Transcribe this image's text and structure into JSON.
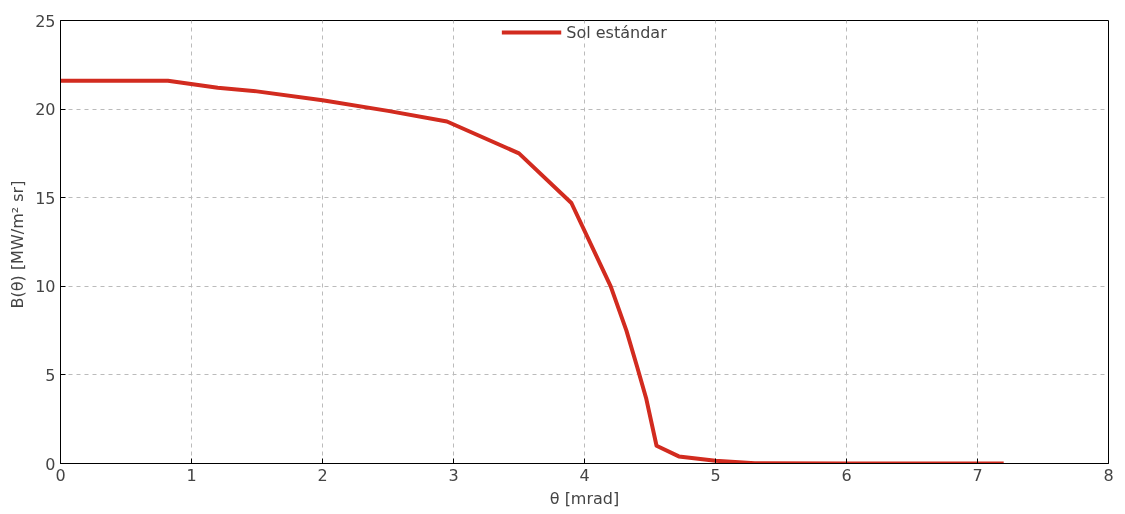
{
  "chart_data": {
    "type": "line",
    "xlabel": "θ [mrad]",
    "ylabel": "B(θ)  [MW/m² sr]",
    "xlim": [
      0,
      8
    ],
    "ylim": [
      0,
      25
    ],
    "xticks": [
      0,
      1,
      2,
      3,
      4,
      5,
      6,
      7,
      8
    ],
    "yticks": [
      0,
      5,
      10,
      15,
      20,
      25
    ],
    "grid": true,
    "legend": "top",
    "marker": "none",
    "line_style": "solid",
    "series": [
      {
        "name": "Sol estándar",
        "color": "#d22b1f",
        "x": [
          0,
          0.82,
          1.2,
          1.5,
          2.0,
          2.5,
          2.95,
          3.5,
          3.9,
          4.2,
          4.32,
          4.4,
          4.47,
          4.55,
          4.72,
          5.0,
          5.3,
          6.0,
          7.2
        ],
        "values": [
          21.6,
          21.6,
          21.2,
          21.0,
          20.5,
          19.9,
          19.3,
          17.5,
          14.7,
          10.0,
          7.5,
          5.5,
          3.7,
          1.0,
          0.4,
          0.15,
          0.02,
          0,
          0
        ]
      }
    ]
  }
}
